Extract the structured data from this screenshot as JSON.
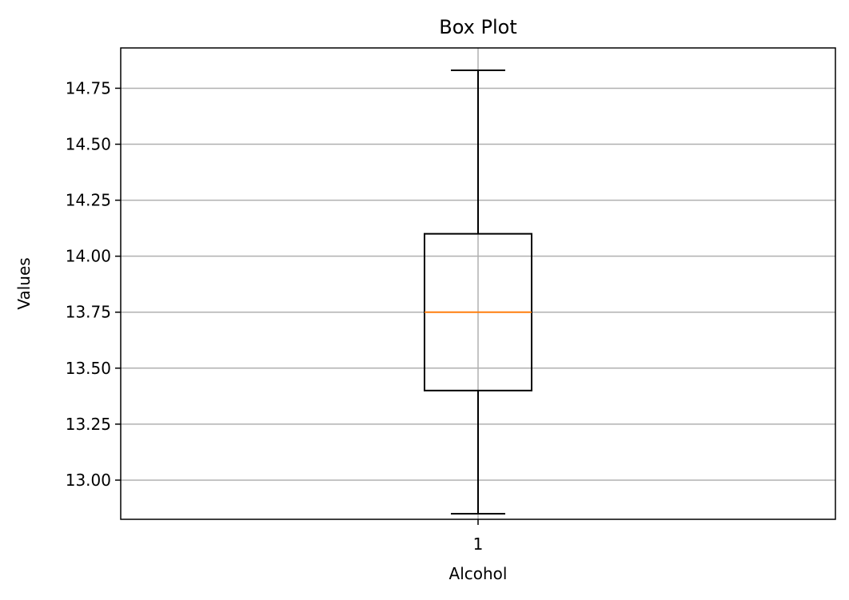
{
  "chart_data": {
    "type": "box",
    "title": "Box Plot",
    "xlabel": "Alcohol",
    "ylabel": "Values",
    "categories": [
      "1"
    ],
    "boxes": [
      {
        "category": "1",
        "whisker_low": 12.85,
        "q1": 13.4,
        "median": 13.75,
        "q3": 14.1,
        "whisker_high": 14.83
      }
    ],
    "ylim": [
      12.825,
      14.93
    ],
    "yticks": [
      13.0,
      13.25,
      13.5,
      13.75,
      14.0,
      14.25,
      14.5,
      14.75
    ],
    "ytick_labels": [
      "13.00",
      "13.25",
      "13.50",
      "13.75",
      "14.00",
      "14.25",
      "14.50",
      "14.75"
    ],
    "grid": true,
    "colors": {
      "box": "#000000",
      "median": "#ff7f0e",
      "grid": "#b0b0b0"
    }
  }
}
